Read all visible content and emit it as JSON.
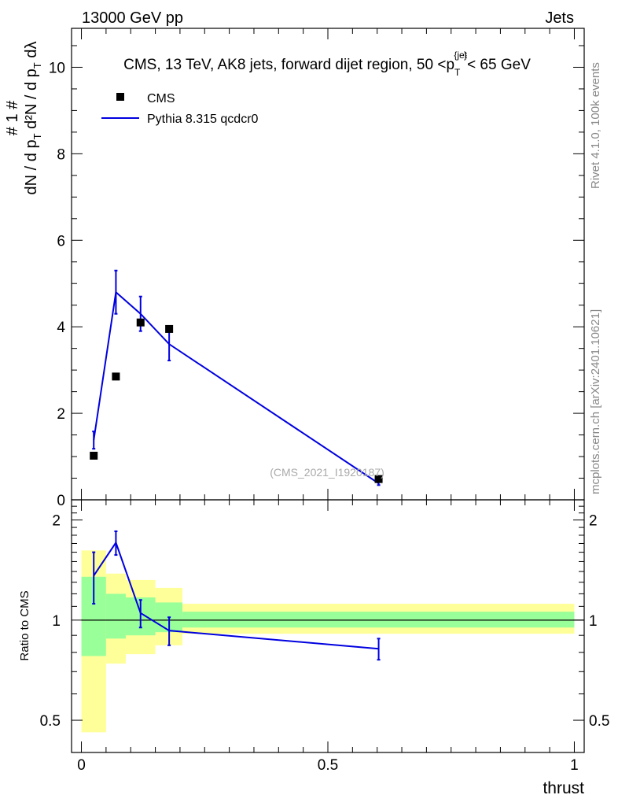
{
  "header": {
    "left": "13000 GeV pp",
    "right": "Jets"
  },
  "side_labels": {
    "rivet": "Rivet 4.1.0,  100k events",
    "mcplots": "mcplots.cern.ch [arXiv:2401.10621]"
  },
  "ylabel_top": "# 1 / (# dN / dp_T) # d²N / dp_T dλ",
  "ylabel_ratio": "Ratio to CMS",
  "xlabel": "thrust",
  "colors": {
    "data": "#000000",
    "mc": "#0000e0",
    "band_inner": "#99ff99",
    "band_outer": "#ffff99"
  },
  "chart_data": [
    {
      "type": "scatter",
      "title": "CMS, 13 TeV, AK8 jets, forward dijet region, 50 <p_T^{jet}< 65 GeV",
      "watermark": "(CMS_2021_I1920187)",
      "legend": [
        {
          "label": "CMS",
          "marker": "square"
        },
        {
          "label": "Pythia 8.315 qcdcr0",
          "marker": "line"
        }
      ],
      "legend_position": "top-left",
      "xlim": [
        -0.02,
        1.02
      ],
      "ylim": [
        0,
        10.9
      ],
      "yticks": [
        0,
        2,
        4,
        6,
        8,
        10
      ],
      "series": [
        {
          "name": "CMS",
          "x": [
            0.025,
            0.07,
            0.12,
            0.178,
            0.603
          ],
          "y": [
            1.02,
            2.85,
            4.1,
            3.95,
            0.48
          ]
        },
        {
          "name": "Pythia 8.315 qcdcr0",
          "x": [
            0.025,
            0.07,
            0.12,
            0.178,
            0.603
          ],
          "y": [
            1.38,
            4.8,
            4.3,
            3.6,
            0.38
          ],
          "yerr": [
            0.2,
            0.5,
            0.4,
            0.38,
            0.04
          ]
        }
      ]
    },
    {
      "type": "line",
      "title": "Ratio to CMS",
      "xlim": [
        -0.02,
        1.02
      ],
      "ylim": [
        0.4,
        2.3
      ],
      "yticks": [
        0.5,
        1,
        2
      ],
      "xticks": [
        0,
        0.5,
        1
      ],
      "xticklabels": [
        "0",
        "0.5",
        "1"
      ],
      "bands": [
        {
          "x0": 0.0,
          "x1": 0.05,
          "inner": [
            0.78,
            1.35
          ],
          "outer": [
            0.46,
            1.62
          ]
        },
        {
          "x0": 0.05,
          "x1": 0.09,
          "inner": [
            0.88,
            1.2
          ],
          "outer": [
            0.74,
            1.38
          ]
        },
        {
          "x0": 0.09,
          "x1": 0.15,
          "inner": [
            0.9,
            1.17
          ],
          "outer": [
            0.79,
            1.32
          ]
        },
        {
          "x0": 0.15,
          "x1": 0.205,
          "inner": [
            0.92,
            1.13
          ],
          "outer": [
            0.84,
            1.25
          ]
        },
        {
          "x0": 0.205,
          "x1": 1.0,
          "inner": [
            0.95,
            1.06
          ],
          "outer": [
            0.91,
            1.12
          ]
        }
      ],
      "series": [
        {
          "name": "Pythia 8.315 qcdcr0",
          "x": [
            0.025,
            0.07,
            0.12,
            0.178,
            0.603
          ],
          "y": [
            1.36,
            1.71,
            1.05,
            0.93,
            0.82
          ],
          "yerr": [
            0.24,
            0.14,
            0.1,
            0.09,
            0.06
          ]
        }
      ]
    }
  ]
}
